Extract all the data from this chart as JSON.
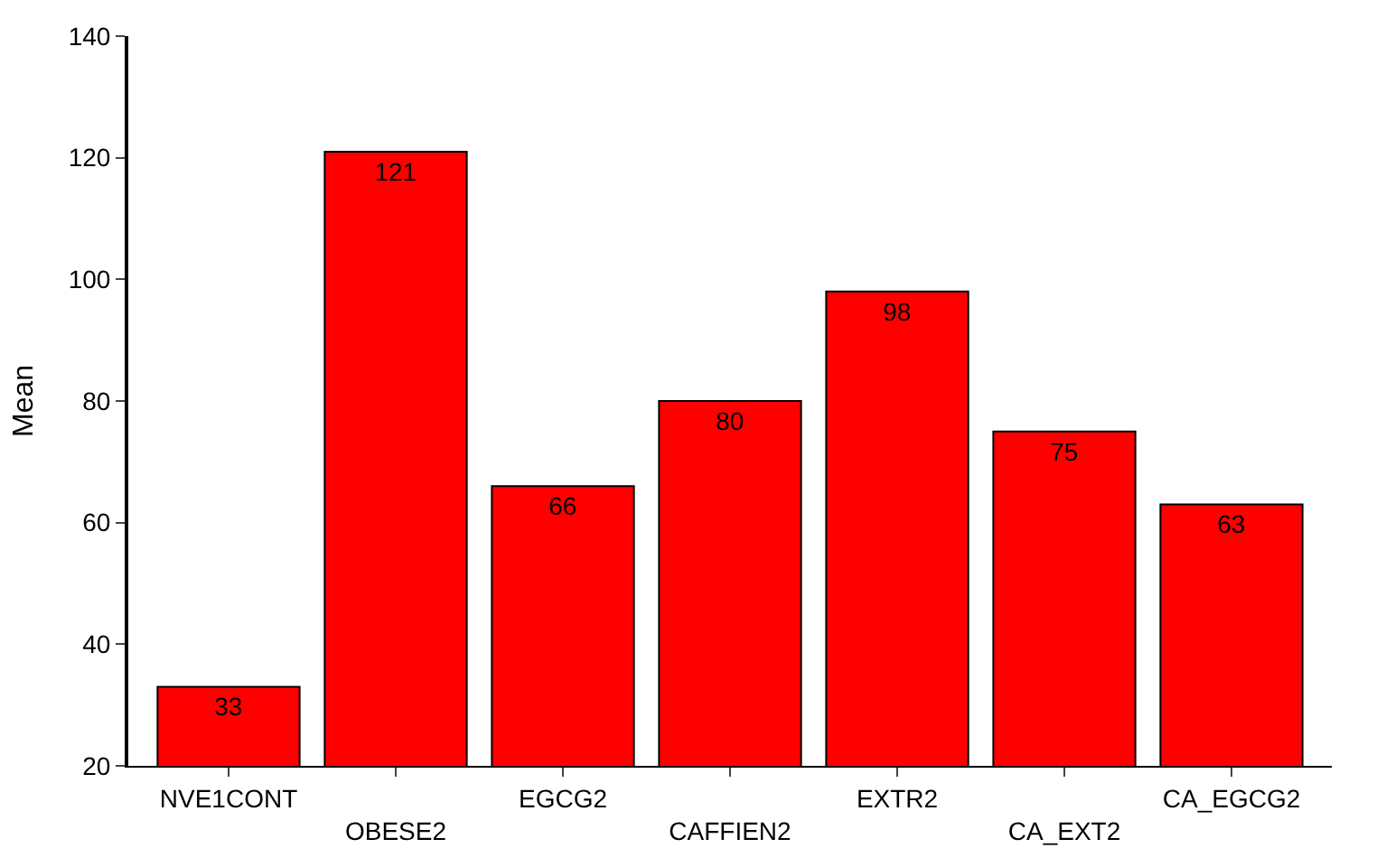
{
  "chart_data": {
    "type": "bar",
    "ylabel": "Mean",
    "categories": [
      "NVE1CONT",
      "OBESE2",
      "EGCG2",
      "CAFFIEN2",
      "EXTR2",
      "CA_EXT2",
      "CA_EGCG2"
    ],
    "values": [
      33,
      121,
      66,
      80,
      98,
      75,
      63
    ],
    "color": "#ff0000",
    "ylim": [
      20,
      140
    ],
    "yticks": [
      20,
      40,
      60,
      80,
      100,
      120,
      140
    ],
    "data_labels": true
  }
}
